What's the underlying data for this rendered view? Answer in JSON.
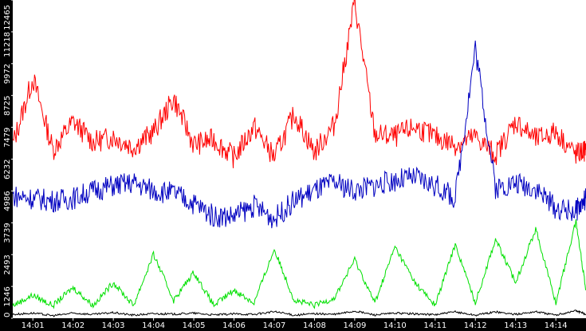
{
  "chart_data": {
    "type": "line",
    "title": "",
    "xlabel": "",
    "ylabel": "",
    "grid": false,
    "legend": "none",
    "x_range": [
      "14:00:30",
      "14:14:45"
    ],
    "ylim": [
      0,
      12465
    ],
    "y_ticks": [
      {
        "value": 0,
        "label": "0"
      },
      {
        "value": 1246,
        "label": "1246"
      },
      {
        "value": 2493,
        "label": "2493"
      },
      {
        "value": 3739,
        "label": "3739"
      },
      {
        "value": 4986,
        "label": "4986"
      },
      {
        "value": 6232,
        "label": "6232"
      },
      {
        "value": 7479,
        "label": "7479"
      },
      {
        "value": 8725,
        "label": "8725"
      },
      {
        "value": 9972,
        "label": "9972"
      },
      {
        "value": 11218,
        "label": "11218"
      },
      {
        "value": 12465,
        "label": "12465"
      }
    ],
    "x_ticks": [
      "14:01",
      "14:02",
      "14:03",
      "14:04",
      "14:05",
      "14:06",
      "14:07",
      "14:08",
      "14:09",
      "14:10",
      "14:11",
      "14:12",
      "14:13",
      "14:14"
    ],
    "x": [
      "14:00:30",
      "14:01:00",
      "14:01:30",
      "14:02:00",
      "14:02:30",
      "14:03:00",
      "14:03:30",
      "14:04:00",
      "14:04:30",
      "14:05:00",
      "14:05:30",
      "14:06:00",
      "14:06:30",
      "14:07:00",
      "14:07:30",
      "14:08:00",
      "14:08:30",
      "14:09:00",
      "14:09:30",
      "14:10:00",
      "14:10:30",
      "14:11:00",
      "14:11:30",
      "14:12:00",
      "14:12:30",
      "14:13:00",
      "14:13:30",
      "14:14:00",
      "14:14:30",
      "14:14:45"
    ],
    "series": [
      {
        "color": "#ff0000",
        "values": [
          6800,
          9400,
          6600,
          7700,
          6900,
          7100,
          6700,
          7300,
          8600,
          6800,
          7000,
          6300,
          7500,
          6300,
          8000,
          6500,
          7600,
          12400,
          7200,
          7100,
          7500,
          7100,
          6800,
          7100,
          6400,
          7700,
          7000,
          7300,
          6400,
          6600
        ]
      },
      {
        "color": "#0000c0",
        "values": [
          4800,
          4700,
          4600,
          4700,
          5000,
          5200,
          5300,
          5000,
          4900,
          4500,
          4000,
          4000,
          4400,
          3900,
          4600,
          5000,
          5300,
          5000,
          5200,
          5400,
          5500,
          5200,
          4700,
          10600,
          5100,
          5300,
          5100,
          4300,
          4200,
          4700
        ]
      },
      {
        "color": "#00e000",
        "values": [
          500,
          900,
          500,
          1200,
          500,
          1400,
          500,
          2500,
          700,
          1800,
          500,
          1100,
          600,
          2700,
          700,
          500,
          800,
          2300,
          600,
          2800,
          1400,
          500,
          2900,
          600,
          3100,
          1400,
          3500,
          600,
          3800,
          1100
        ]
      },
      {
        "color": "#000000",
        "values": [
          150,
          200,
          100,
          200,
          150,
          220,
          120,
          180,
          160,
          200,
          130,
          170,
          150,
          260,
          120,
          180,
          150,
          280,
          130,
          200,
          170,
          140,
          250,
          120,
          250,
          150,
          260,
          120,
          300,
          150
        ]
      }
    ]
  }
}
